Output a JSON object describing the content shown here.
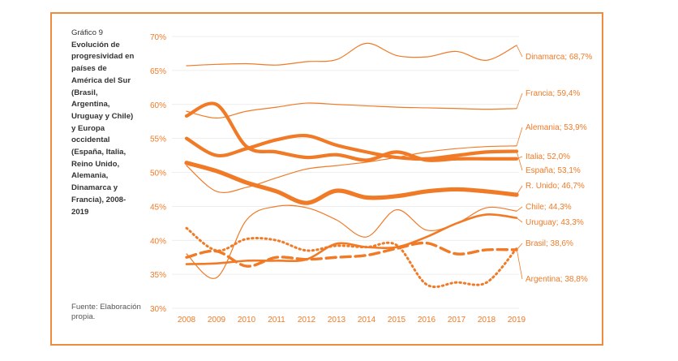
{
  "caption": {
    "kicker": "Gráfico 9",
    "title": "Evolución de progresividad en países de América del Sur (Brasil, Argentina, Uruguay y Chile) y Europa occidental (España, Italia, Reino Unido, Alemania, Dinamarca y Francia), 2008-2019"
  },
  "source": "Fuente: Elaboración propia.",
  "chart_data": {
    "type": "line",
    "title": "Evolución de progresividad en países de América del Sur (Brasil, Argentina, Uruguay y Chile) y Europa occidental (España, Italia, Reino Unido, Alemania, Dinamarca y Francia), 2008-2019",
    "xlabel": "",
    "ylabel": "",
    "x": [
      2008,
      2009,
      2010,
      2011,
      2012,
      2013,
      2014,
      2015,
      2016,
      2017,
      2018,
      2019
    ],
    "ylim": [
      30,
      70
    ],
    "yticks": [
      "30%",
      "35%",
      "40%",
      "45%",
      "50%",
      "55%",
      "60%",
      "65%",
      "70%"
    ],
    "xticks": [
      "2008",
      "2009",
      "2010",
      "2011",
      "2012",
      "2013",
      "2014",
      "2015",
      "2016",
      "2017",
      "2018",
      "2019"
    ],
    "color": "#f07a26",
    "series": [
      {
        "name": "Dinamarca",
        "label": "Dinamarca; 68,7%",
        "style": "thin",
        "values": [
          65.7,
          65.9,
          66.0,
          65.8,
          66.3,
          66.6,
          69.0,
          67.2,
          67.0,
          67.8,
          66.5,
          68.7
        ]
      },
      {
        "name": "Francia",
        "label": "Francia; 59,4%",
        "style": "thin",
        "values": [
          59.0,
          58.0,
          59.0,
          59.6,
          60.2,
          60.0,
          59.8,
          59.6,
          59.5,
          59.4,
          59.3,
          59.4
        ]
      },
      {
        "name": "Alemania",
        "label": "Alemania; 53,9%",
        "style": "thin",
        "values": [
          51.0,
          47.2,
          47.8,
          49.2,
          50.5,
          51.0,
          51.5,
          52.2,
          53.0,
          53.5,
          53.8,
          53.9
        ]
      },
      {
        "name": "Italia",
        "label": "Italia; 52,0%",
        "style": "thick",
        "values": [
          58.3,
          60.0,
          53.8,
          53.0,
          52.2,
          52.6,
          51.8,
          53.0,
          51.8,
          52.0,
          52.0,
          52.0
        ]
      },
      {
        "name": "España",
        "label": "España; 53,1%",
        "style": "thick",
        "values": [
          55.0,
          52.5,
          53.5,
          54.8,
          55.4,
          54.0,
          53.0,
          52.2,
          52.0,
          52.5,
          53.0,
          53.1
        ]
      },
      {
        "name": "R. Unido",
        "label": "R. Unido; 46,7%",
        "style": "thickest",
        "values": [
          51.4,
          50.2,
          48.5,
          47.2,
          45.5,
          47.3,
          46.3,
          46.5,
          47.2,
          47.5,
          47.2,
          46.7
        ]
      },
      {
        "name": "Chile",
        "label": "Chile; 44,3%",
        "style": "thin",
        "values": [
          38.0,
          34.5,
          43.0,
          45.0,
          44.8,
          43.0,
          40.5,
          44.5,
          41.5,
          42.5,
          44.8,
          44.3
        ]
      },
      {
        "name": "Uruguay",
        "label": "Uruguay; 43,3%",
        "style": "medium",
        "values": [
          36.5,
          36.6,
          37.0,
          37.0,
          37.2,
          39.5,
          39.0,
          39.0,
          40.5,
          42.5,
          43.8,
          43.3
        ]
      },
      {
        "name": "Brasil",
        "label": "Brasil; 38,6%",
        "style": "dashed",
        "values": [
          37.5,
          38.4,
          36.2,
          37.5,
          37.2,
          37.5,
          37.8,
          38.8,
          39.6,
          38.0,
          38.6,
          38.6
        ]
      },
      {
        "name": "Argentina",
        "label": "Argentina; 38,8%",
        "style": "dotted",
        "values": [
          41.8,
          38.5,
          40.2,
          40.0,
          38.5,
          39.2,
          39.0,
          39.3,
          33.5,
          33.8,
          33.8,
          38.8
        ]
      }
    ]
  }
}
